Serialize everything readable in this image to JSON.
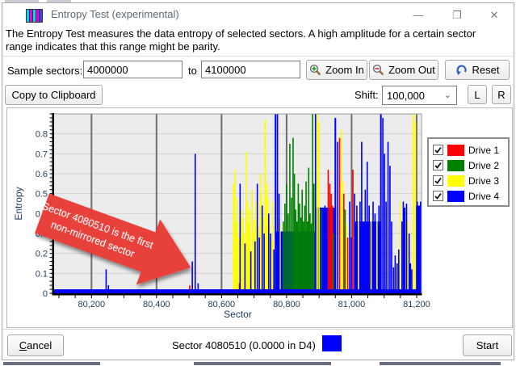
{
  "window": {
    "title": "Entropy Test (experimental)",
    "minimize_glyph": "—",
    "maximize_glyph": "❐",
    "close_glyph": "✕"
  },
  "description": {
    "line1": "The Entropy Test measures the data entropy of selected sectors. A high amplitude for a certain sector",
    "line2": "range indicates that this range might be parity."
  },
  "controls": {
    "sample_sectors_label": "Sample sectors:",
    "from_value": "4000000",
    "to_label": "to",
    "to_value": "4100000",
    "zoom_in_label": "Zoom In",
    "zoom_out_label": "Zoom Out",
    "reset_label": "Reset",
    "copy_label": "Copy to Clipboard",
    "shift_label": "Shift:",
    "shift_value": "100,000",
    "left_label": "L",
    "right_label": "R"
  },
  "annotation": {
    "line1": "Sector 4080510 is the first",
    "line2": "non-mirrored sector",
    "color": "#e8403a"
  },
  "legend": {
    "items": [
      {
        "label": "Drive 1",
        "color": "#ff0000",
        "checked": true
      },
      {
        "label": "Drive 2",
        "color": "#008000",
        "checked": true
      },
      {
        "label": "Drive 3",
        "color": "#ffff00",
        "checked": true
      },
      {
        "label": "Drive 4",
        "color": "#0000ff",
        "checked": true
      }
    ]
  },
  "footer": {
    "cancel_prefix": "C",
    "cancel_suffix": "ancel",
    "status_text": "Sector 4080510 (0.0000 in D4)",
    "status_color": "#0000ff",
    "start_label": "Start"
  },
  "chart_data": {
    "type": "bar",
    "title": "",
    "xlabel": "Sector",
    "ylabel": "Entropy",
    "xlim": [
      80085,
      81215
    ],
    "ylim": [
      0,
      0.9
    ],
    "x_ticks": [
      80200,
      80400,
      80600,
      80800,
      81000,
      81200
    ],
    "x_tick_labels": [
      "80,200",
      "80,400",
      "80,600",
      "80,800",
      "81,000",
      "81,200"
    ],
    "x_minor_tick_step": 50,
    "y_ticks": [
      0,
      0.1,
      0.2,
      0.3,
      0.4,
      0.5,
      0.6,
      0.7,
      0.8
    ],
    "y_tick_labels": [
      "0",
      "0.1",
      "0.2",
      "0.3",
      "0.4",
      "0.5",
      "0.6",
      "0.7",
      "0.8"
    ],
    "y_minor_tick_step": 0.02,
    "grid": true,
    "legend_position": "right",
    "series_names": [
      "Drive 1",
      "Drive 2",
      "Drive 3",
      "Drive 4"
    ],
    "series_colors": {
      "1": "#ff0000",
      "2": "#008000",
      "3": "#ffff00",
      "4": "#0000ff"
    },
    "baseline": {
      "drive": 4,
      "from": 80085,
      "to": 81215,
      "value": 0.02
    },
    "plateaus": [
      [
        80765,
        80892,
        0.31,
        4
      ],
      [
        80888,
        80952,
        0.43,
        4
      ],
      [
        81008,
        81090,
        0.36,
        4
      ],
      [
        81196,
        81215,
        0.44,
        4
      ]
    ],
    "bars": [
      [
        80245,
        0.12,
        4
      ],
      [
        80252,
        0.04,
        4
      ],
      [
        80502,
        0.04,
        1
      ],
      [
        80510,
        0.16,
        4
      ],
      [
        80519,
        0.7,
        4
      ],
      [
        80528,
        0.05,
        4
      ],
      [
        80637,
        0.55,
        3
      ],
      [
        80641,
        0.62,
        3
      ],
      [
        80645,
        0.36,
        3
      ],
      [
        80649,
        0.48,
        3
      ],
      [
        80653,
        0.28,
        3
      ],
      [
        80655,
        0.05,
        1
      ],
      [
        80657,
        0.55,
        4
      ],
      [
        80661,
        0.42,
        3
      ],
      [
        80665,
        0.38,
        3
      ],
      [
        80669,
        0.3,
        3
      ],
      [
        80672,
        0.25,
        4
      ],
      [
        80676,
        0.71,
        3
      ],
      [
        80680,
        0.46,
        3
      ],
      [
        80684,
        0.35,
        3
      ],
      [
        80687,
        0.42,
        3
      ],
      [
        80690,
        0.21,
        4
      ],
      [
        80694,
        0.52,
        3
      ],
      [
        80697,
        0.31,
        3
      ],
      [
        80700,
        0.37,
        3
      ],
      [
        80703,
        0.26,
        4
      ],
      [
        80706,
        0.46,
        3
      ],
      [
        80710,
        0.55,
        4
      ],
      [
        80713,
        0.33,
        3
      ],
      [
        80716,
        0.28,
        4
      ],
      [
        80719,
        0.6,
        3
      ],
      [
        80722,
        0.5,
        3
      ],
      [
        80725,
        0.44,
        4
      ],
      [
        80728,
        0.38,
        3
      ],
      [
        80731,
        0.3,
        4
      ],
      [
        80734,
        0.87,
        3,
        5
      ],
      [
        80739,
        0.55,
        3
      ],
      [
        80742,
        0.48,
        3
      ],
      [
        80745,
        0.4,
        4
      ],
      [
        80748,
        0.35,
        3
      ],
      [
        80751,
        0.3,
        4
      ],
      [
        80755,
        0.26,
        3
      ],
      [
        80758,
        0.46,
        3
      ],
      [
        80761,
        0.22,
        4
      ],
      [
        80766,
        0.9,
        4,
        5
      ],
      [
        80772,
        0.9,
        4,
        4
      ],
      [
        80777,
        0.5,
        4
      ],
      [
        80780,
        0.35,
        3
      ],
      [
        80790,
        0.36,
        2
      ],
      [
        80795,
        0.45,
        2
      ],
      [
        80800,
        0.55,
        2
      ],
      [
        80805,
        0.4,
        2
      ],
      [
        80810,
        0.75,
        2
      ],
      [
        80815,
        0.48,
        2
      ],
      [
        80820,
        0.78,
        2
      ],
      [
        80824,
        0.6,
        2
      ],
      [
        80828,
        0.42,
        2
      ],
      [
        80832,
        0.36,
        2
      ],
      [
        80836,
        0.55,
        2
      ],
      [
        80840,
        0.45,
        2
      ],
      [
        80844,
        0.38,
        2
      ],
      [
        80848,
        0.52,
        2
      ],
      [
        80852,
        0.36,
        2
      ],
      [
        80856,
        0.44,
        2
      ],
      [
        80860,
        0.56,
        2
      ],
      [
        80864,
        0.36,
        2
      ],
      [
        80868,
        0.63,
        2
      ],
      [
        80872,
        0.4,
        2
      ],
      [
        80876,
        0.35,
        2
      ],
      [
        80880,
        0.9,
        2,
        4
      ],
      [
        80884,
        0.55,
        2
      ],
      [
        80889,
        0.9,
        4,
        4
      ],
      [
        80894,
        0.9,
        3,
        5
      ],
      [
        80900,
        0.86,
        3,
        4
      ],
      [
        80906,
        0.42,
        2
      ],
      [
        80912,
        0.38,
        4
      ],
      [
        80918,
        0.44,
        4
      ],
      [
        80928,
        0.62,
        1,
        4
      ],
      [
        80933,
        0.55,
        1
      ],
      [
        80937,
        0.5,
        1
      ],
      [
        80941,
        0.44,
        1
      ],
      [
        80944,
        0.3,
        2
      ],
      [
        80950,
        0.88,
        4,
        5
      ],
      [
        80957,
        0.76,
        4,
        4
      ],
      [
        80963,
        0.78,
        1,
        4
      ],
      [
        80968,
        0.82,
        3,
        4
      ],
      [
        80972,
        0.56,
        3
      ],
      [
        80976,
        0.5,
        1
      ],
      [
        80980,
        0.42,
        2
      ],
      [
        80984,
        0.35,
        3
      ],
      [
        80988,
        0.28,
        1
      ],
      [
        80994,
        0.46,
        4
      ],
      [
        80999,
        0.28,
        4
      ],
      [
        81004,
        0.62,
        1,
        4
      ],
      [
        81009,
        0.5,
        4
      ],
      [
        81016,
        0.44,
        4
      ],
      [
        81021,
        0.36,
        3
      ],
      [
        81026,
        0.46,
        4
      ],
      [
        81031,
        0.76,
        4,
        4
      ],
      [
        81037,
        0.3,
        4
      ],
      [
        81042,
        0.52,
        4
      ],
      [
        81048,
        0.66,
        4,
        4
      ],
      [
        81054,
        0.44,
        4
      ],
      [
        81060,
        0.38,
        3
      ],
      [
        81066,
        0.46,
        4
      ],
      [
        81072,
        0.4,
        4
      ],
      [
        81078,
        0.36,
        3
      ],
      [
        81084,
        0.44,
        4
      ],
      [
        81090,
        0.9,
        4,
        5
      ],
      [
        81096,
        0.88,
        4,
        4
      ],
      [
        81101,
        0.7,
        4
      ],
      [
        81106,
        0.46,
        4
      ],
      [
        81112,
        0.76,
        4,
        4
      ],
      [
        81118,
        0.64,
        4
      ],
      [
        81123,
        0.36,
        4
      ],
      [
        81129,
        0.13,
        4
      ],
      [
        81134,
        0.19,
        4
      ],
      [
        81140,
        0.15,
        4
      ],
      [
        81145,
        0.22,
        4
      ],
      [
        81150,
        0.46,
        3,
        4
      ],
      [
        81155,
        0.36,
        4
      ],
      [
        81159,
        0.46,
        4
      ],
      [
        81163,
        0.43,
        4,
        5
      ],
      [
        81169,
        0.45,
        4
      ],
      [
        81173,
        0.36,
        3
      ],
      [
        81177,
        0.3,
        4
      ],
      [
        81181,
        0.15,
        4
      ],
      [
        81185,
        0.12,
        4
      ],
      [
        81190,
        0.9,
        3,
        5
      ],
      [
        81196,
        0.86,
        3,
        4
      ],
      [
        81202,
        0.46,
        4
      ],
      [
        81207,
        0.32,
        4
      ],
      [
        81212,
        0.46,
        4,
        4
      ]
    ]
  }
}
